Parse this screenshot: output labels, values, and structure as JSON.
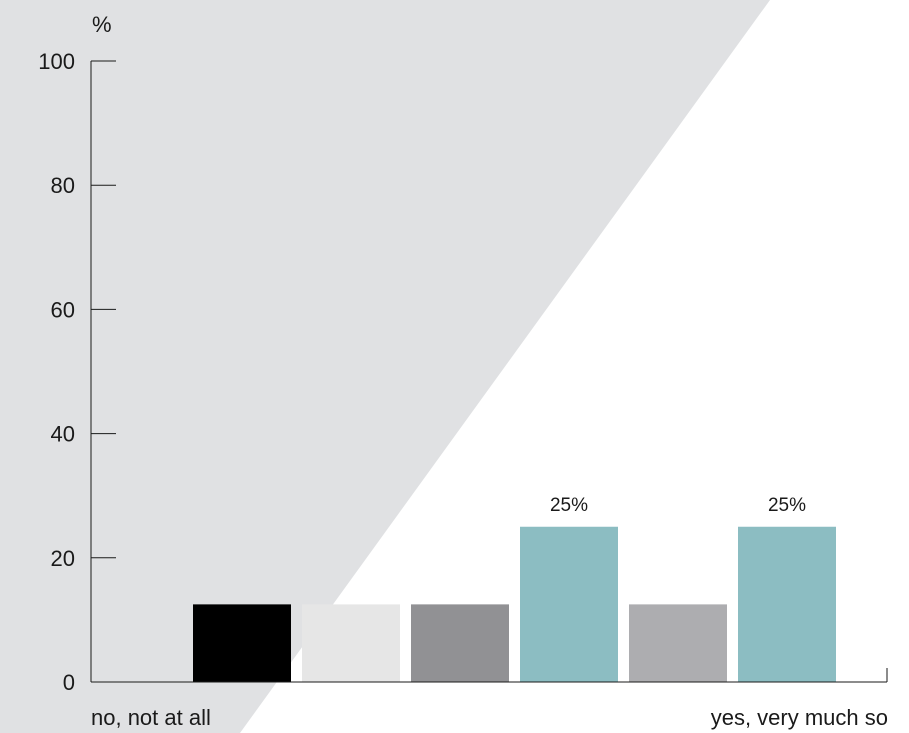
{
  "chart_data": {
    "type": "bar",
    "y_unit": "%",
    "ylim": [
      0,
      100
    ],
    "yticks": [
      0,
      20,
      40,
      60,
      80,
      100
    ],
    "grid": false,
    "legend": "none",
    "axis_end_labels": {
      "left": "no, not at all",
      "right": "yes, very much so"
    },
    "values": [
      0,
      12.5,
      12.5,
      12.5,
      25,
      12.5,
      25
    ],
    "colors": [
      "#000000",
      "#000000",
      "#e6e6e6",
      "#919194",
      "#8cbdc2",
      "#adadb0",
      "#8cbdc2"
    ],
    "data_labels": [
      "",
      "",
      "",
      "",
      "25%",
      "",
      "25%"
    ],
    "background_band_color": "#e0e1e3"
  }
}
